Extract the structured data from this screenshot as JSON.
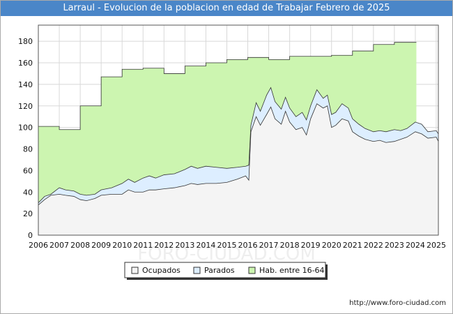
{
  "header": {
    "title": "Larraul - Evolucion de la poblacion en edad de Trabajar Febrero de 2025"
  },
  "footer": {
    "url": "http://www.foro-ciudad.com"
  },
  "watermark": "FORO-CIUDAD.COM",
  "colors": {
    "title_bg": "#4a86c8",
    "hab_fill": "#ccf5b0",
    "parados_fill": "#ddeeff",
    "ocupados_fill": "#f4f4f4",
    "line": "#333333"
  },
  "chart_data": {
    "type": "area",
    "title": "Larraul - Evolucion de la poblacion en edad de Trabajar Febrero de 2025",
    "xlabel": "",
    "ylabel": "",
    "xlim": [
      2006,
      2025.1
    ],
    "ylim": [
      0,
      195
    ],
    "yticks": [
      0,
      20,
      40,
      60,
      80,
      100,
      120,
      140,
      160,
      180
    ],
    "xticks": [
      2006,
      2007,
      2008,
      2009,
      2010,
      2011,
      2012,
      2013,
      2014,
      2015,
      2016,
      2017,
      2018,
      2019,
      2020,
      2021,
      2022,
      2023,
      2024,
      2025
    ],
    "grid": true,
    "legend": {
      "position": "bottom-center",
      "entries": [
        "Ocupados",
        "Parados",
        "Hab. entre 16-64"
      ]
    },
    "series": [
      {
        "name": "Hab. entre 16-64",
        "step": true,
        "points": [
          [
            2006,
            101
          ],
          [
            2007,
            98
          ],
          [
            2008,
            120
          ],
          [
            2009,
            147
          ],
          [
            2010,
            154
          ],
          [
            2011,
            155
          ],
          [
            2012,
            150
          ],
          [
            2013,
            157
          ],
          [
            2014,
            160
          ],
          [
            2015,
            163
          ],
          [
            2016,
            165
          ],
          [
            2017,
            163
          ],
          [
            2018,
            166
          ],
          [
            2019,
            166
          ],
          [
            2020,
            167
          ],
          [
            2021,
            171
          ],
          [
            2022,
            177
          ],
          [
            2023,
            179
          ],
          [
            2024,
            179
          ]
        ]
      },
      {
        "name": "Parados",
        "points": [
          [
            2006,
            30
          ],
          [
            2006.3,
            36
          ],
          [
            2006.6,
            38
          ],
          [
            2007,
            44
          ],
          [
            2007.3,
            42
          ],
          [
            2007.7,
            41
          ],
          [
            2008,
            38
          ],
          [
            2008.3,
            37
          ],
          [
            2008.7,
            38
          ],
          [
            2009,
            42
          ],
          [
            2009.5,
            44
          ],
          [
            2010,
            48
          ],
          [
            2010.3,
            52
          ],
          [
            2010.6,
            49
          ],
          [
            2011,
            53
          ],
          [
            2011.3,
            55
          ],
          [
            2011.6,
            53
          ],
          [
            2012,
            56
          ],
          [
            2012.5,
            57
          ],
          [
            2013,
            61
          ],
          [
            2013.3,
            64
          ],
          [
            2013.6,
            62
          ],
          [
            2014,
            64
          ],
          [
            2014.5,
            63
          ],
          [
            2015,
            62
          ],
          [
            2015.5,
            63
          ],
          [
            2015.9,
            64
          ],
          [
            2016.05,
            65
          ],
          [
            2016.15,
            102
          ],
          [
            2016.4,
            123
          ],
          [
            2016.6,
            115
          ],
          [
            2016.9,
            130
          ],
          [
            2017.1,
            137
          ],
          [
            2017.3,
            124
          ],
          [
            2017.6,
            117
          ],
          [
            2017.8,
            128
          ],
          [
            2018,
            118
          ],
          [
            2018.3,
            110
          ],
          [
            2018.6,
            114
          ],
          [
            2018.8,
            107
          ],
          [
            2019,
            120
          ],
          [
            2019.3,
            135
          ],
          [
            2019.6,
            127
          ],
          [
            2019.8,
            130
          ],
          [
            2020,
            112
          ],
          [
            2020.2,
            114
          ],
          [
            2020.5,
            122
          ],
          [
            2020.8,
            118
          ],
          [
            2021,
            108
          ],
          [
            2021.3,
            103
          ],
          [
            2021.6,
            99
          ],
          [
            2022,
            96
          ],
          [
            2022.3,
            97
          ],
          [
            2022.6,
            96
          ],
          [
            2023,
            98
          ],
          [
            2023.3,
            97
          ],
          [
            2023.6,
            99
          ],
          [
            2024,
            105
          ],
          [
            2024.3,
            103
          ],
          [
            2024.6,
            96
          ],
          [
            2025,
            97
          ],
          [
            2025.1,
            94
          ]
        ]
      },
      {
        "name": "Ocupados",
        "points": [
          [
            2006,
            28
          ],
          [
            2006.3,
            33
          ],
          [
            2006.6,
            37
          ],
          [
            2007,
            38
          ],
          [
            2007.3,
            37
          ],
          [
            2007.7,
            36
          ],
          [
            2008,
            33
          ],
          [
            2008.3,
            32
          ],
          [
            2008.7,
            34
          ],
          [
            2009,
            37
          ],
          [
            2009.5,
            38
          ],
          [
            2010,
            38
          ],
          [
            2010.3,
            42
          ],
          [
            2010.6,
            40
          ],
          [
            2011,
            40
          ],
          [
            2011.3,
            42
          ],
          [
            2011.6,
            42
          ],
          [
            2012,
            43
          ],
          [
            2012.5,
            44
          ],
          [
            2013,
            46
          ],
          [
            2013.3,
            48
          ],
          [
            2013.6,
            47
          ],
          [
            2014,
            48
          ],
          [
            2014.5,
            48
          ],
          [
            2015,
            49
          ],
          [
            2015.5,
            52
          ],
          [
            2015.9,
            55
          ],
          [
            2016.05,
            51
          ],
          [
            2016.15,
            96
          ],
          [
            2016.4,
            110
          ],
          [
            2016.6,
            102
          ],
          [
            2016.9,
            112
          ],
          [
            2017.1,
            119
          ],
          [
            2017.3,
            108
          ],
          [
            2017.6,
            103
          ],
          [
            2017.8,
            115
          ],
          [
            2018,
            105
          ],
          [
            2018.3,
            98
          ],
          [
            2018.6,
            100
          ],
          [
            2018.8,
            93
          ],
          [
            2019,
            108
          ],
          [
            2019.3,
            122
          ],
          [
            2019.6,
            118
          ],
          [
            2019.8,
            120
          ],
          [
            2020,
            100
          ],
          [
            2020.2,
            102
          ],
          [
            2020.5,
            108
          ],
          [
            2020.8,
            106
          ],
          [
            2021,
            96
          ],
          [
            2021.3,
            92
          ],
          [
            2021.6,
            89
          ],
          [
            2022,
            87
          ],
          [
            2022.3,
            88
          ],
          [
            2022.6,
            86
          ],
          [
            2023,
            87
          ],
          [
            2023.3,
            89
          ],
          [
            2023.6,
            91
          ],
          [
            2024,
            96
          ],
          [
            2024.3,
            94
          ],
          [
            2024.6,
            90
          ],
          [
            2025,
            91
          ],
          [
            2025.1,
            87
          ]
        ]
      }
    ]
  }
}
